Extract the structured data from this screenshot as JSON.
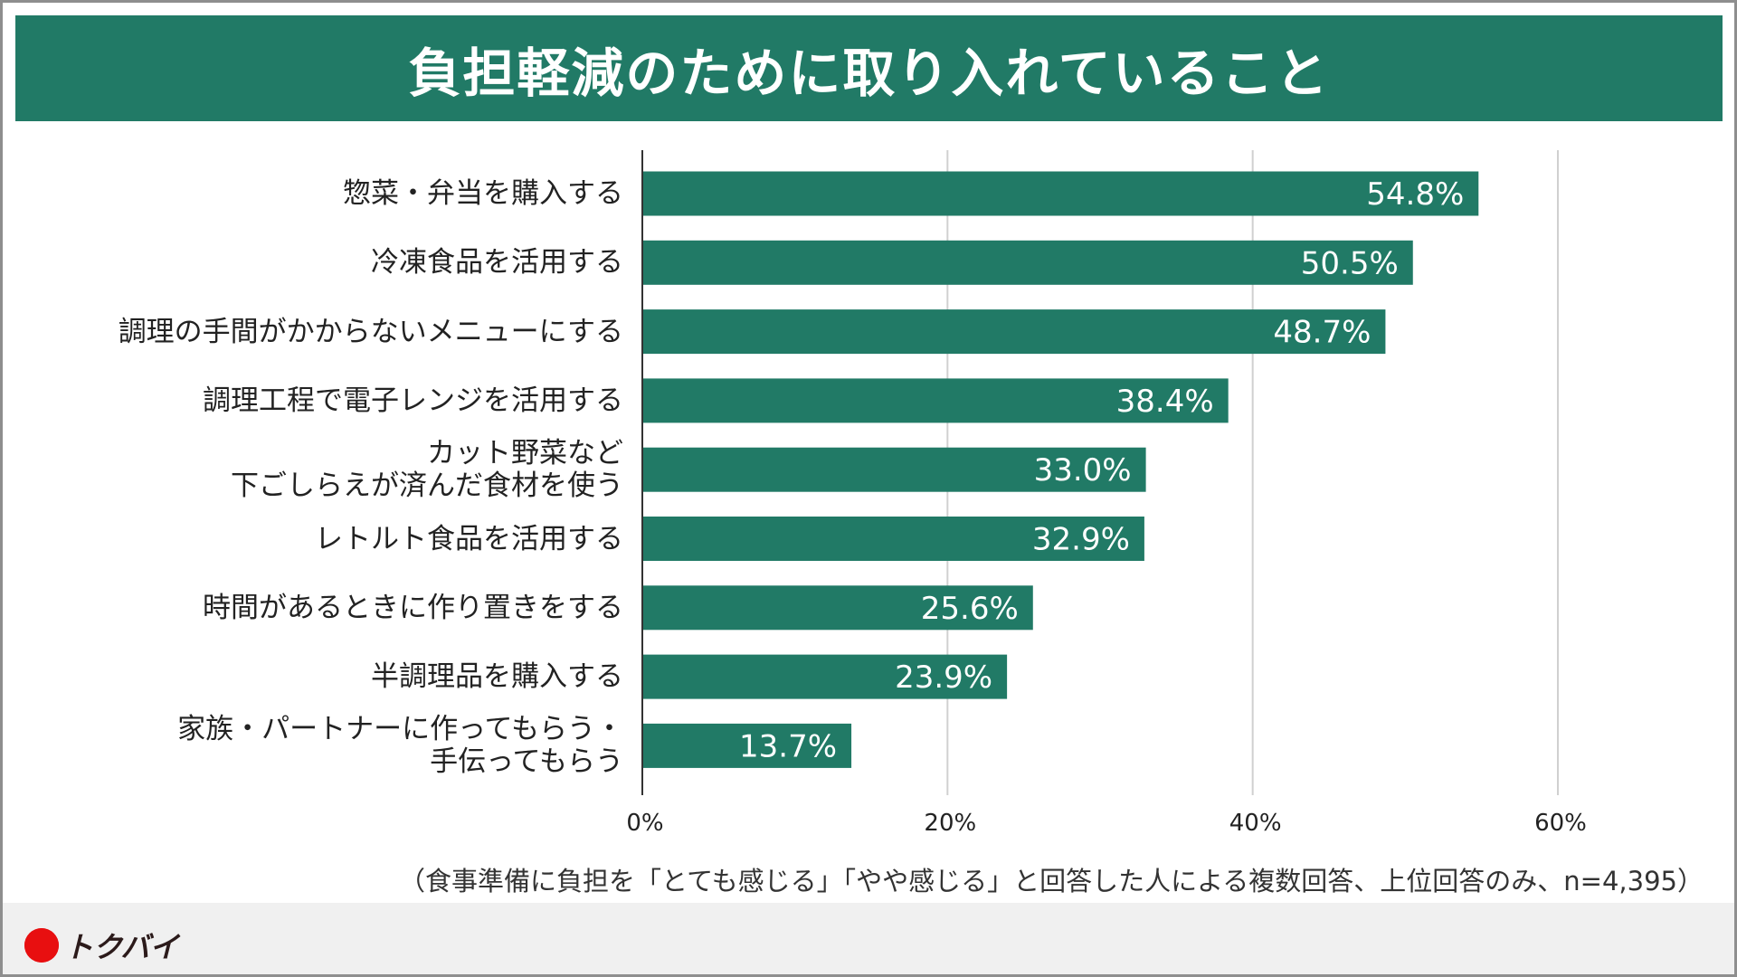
{
  "chart_data": {
    "type": "bar",
    "orientation": "horizontal",
    "title": "負担軽減のために取り入れていること",
    "categories": [
      "惣菜・弁当を購入する",
      "冷凍食品を活用する",
      "調理の手間がかからないメニューにする",
      "調理工程で電子レンジを活用する",
      "カット野菜など\n下ごしらえが済んだ食材を使う",
      "レトルト食品を活用する",
      "時間があるときに作り置きをする",
      "半調理品を購入する",
      "家族・パートナーに作ってもらう・\n手伝ってもらう"
    ],
    "values": [
      54.8,
      50.5,
      48.7,
      38.4,
      33.0,
      32.9,
      25.6,
      23.9,
      13.7
    ],
    "value_labels": [
      "54.8%",
      "50.5%",
      "48.7%",
      "38.4%",
      "33.0%",
      "32.9%",
      "25.6%",
      "23.9%",
      "13.7%"
    ],
    "xlim": [
      0,
      60
    ],
    "xticks": [
      0,
      20,
      40,
      60
    ],
    "xtick_labels": [
      "0%",
      "20%",
      "40%",
      "60%"
    ],
    "grid": true,
    "bar_color": "#217a66",
    "note": "（食事準備に負担を「とても感じる」「やや感じる」と回答した人による複数回答、上位回答のみ、n=4,395）"
  },
  "brand": {
    "logo_text": "トクバイ",
    "logo_color": "#e80f10"
  }
}
